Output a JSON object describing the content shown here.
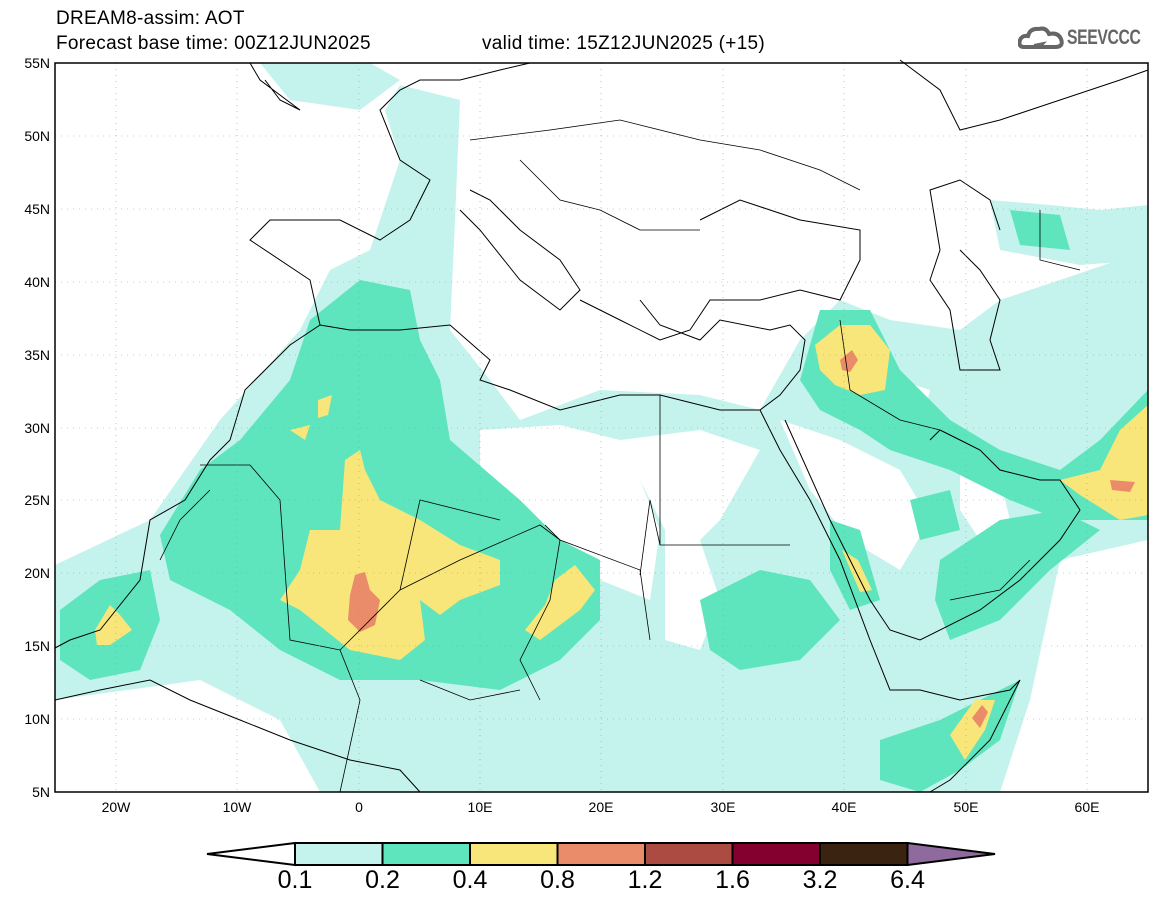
{
  "title": {
    "line1": "DREAM8-assim: AOT",
    "base": "Forecast base time: 00Z12JUN2025",
    "valid": "valid time: 15Z12JUN2025 (+15)"
  },
  "logo": {
    "text": "SEEVCCC"
  },
  "axes": {
    "lat_labels": [
      "55N",
      "50N",
      "45N",
      "40N",
      "35N",
      "30N",
      "25N",
      "20N",
      "15N",
      "10N",
      "5N"
    ],
    "lon_labels": [
      "20W",
      "10W",
      "0",
      "10E",
      "20E",
      "30E",
      "40E",
      "50E",
      "60E"
    ]
  },
  "colorbar": {
    "labels": [
      "0.1",
      "0.2",
      "0.4",
      "0.8",
      "1.2",
      "1.6",
      "3.2",
      "6.4"
    ],
    "colors": [
      "#ffffff",
      "#c4f3ed",
      "#5ee5bd",
      "#f8e67a",
      "#ea8b6a",
      "#ab4b42",
      "#84002f",
      "#3a2411",
      "#8e6a9f"
    ]
  }
}
